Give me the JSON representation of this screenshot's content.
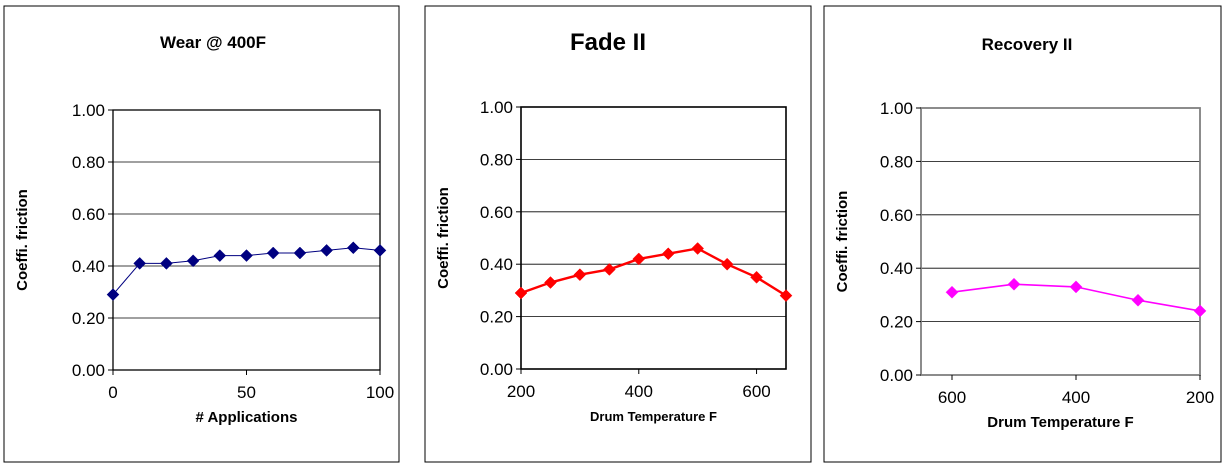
{
  "chart_data": [
    {
      "type": "line",
      "title": "Wear @ 400F",
      "xlabel": "# Applications",
      "ylabel": "Coeffi. friction",
      "xlim": [
        0,
        100
      ],
      "ylim": [
        0,
        1
      ],
      "xticks": [
        "0",
        "50",
        "100"
      ],
      "yticks": [
        "0.00",
        "0.20",
        "0.40",
        "0.60",
        "0.80",
        "1.00"
      ],
      "grid": true,
      "marker": "diamond",
      "color": "#000080",
      "series": [
        {
          "x": [
            0,
            10,
            20,
            30,
            40,
            50,
            60,
            70,
            80,
            90,
            100
          ],
          "y": [
            0.29,
            0.41,
            0.41,
            0.42,
            0.44,
            0.44,
            0.45,
            0.45,
            0.46,
            0.47,
            0.46
          ]
        }
      ]
    },
    {
      "type": "line",
      "title": "Fade II",
      "xlabel": "Drum Temperature F",
      "ylabel": "Coeffi. friction",
      "xlim": [
        200,
        650
      ],
      "ylim": [
        0,
        1
      ],
      "xticks": [
        "200",
        "400",
        "600"
      ],
      "yticks": [
        "0.00",
        "0.20",
        "0.40",
        "0.60",
        "0.80",
        "1.00"
      ],
      "grid": true,
      "marker": "diamond",
      "color": "#ff0000",
      "series": [
        {
          "x": [
            200,
            250,
            300,
            350,
            400,
            450,
            500,
            550,
            600,
            650
          ],
          "y": [
            0.29,
            0.33,
            0.36,
            0.38,
            0.42,
            0.44,
            0.46,
            0.4,
            0.35,
            0.28
          ]
        }
      ]
    },
    {
      "type": "line",
      "title": "Recovery II",
      "xlabel": "Drum Temperature F",
      "ylabel": "Coeffi. friction",
      "xlim": [
        650,
        200
      ],
      "ylim": [
        0,
        1
      ],
      "xticks": [
        "600",
        "400",
        "200"
      ],
      "yticks": [
        "0.00",
        "0.20",
        "0.40",
        "0.60",
        "0.80",
        "1.00"
      ],
      "grid": true,
      "marker": "diamond",
      "color": "#ff00ff",
      "series": [
        {
          "x": [
            600,
            500,
            400,
            300,
            200
          ],
          "y": [
            0.31,
            0.34,
            0.33,
            0.28,
            0.24
          ]
        }
      ]
    }
  ]
}
